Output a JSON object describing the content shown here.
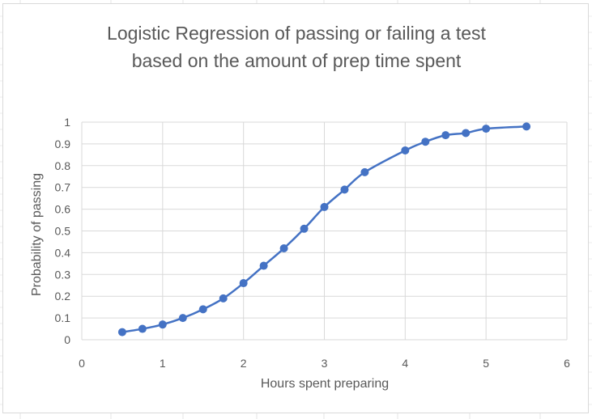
{
  "chart_data": {
    "type": "scatter",
    "title": [
      "Logistic Regression of passing or failing a test",
      "based on the amount of prep time spent"
    ],
    "xlabel": "Hours spent preparing",
    "ylabel": "Probability of passing",
    "xlim": [
      0,
      6
    ],
    "ylim": [
      0,
      1
    ],
    "xticks": [
      "0",
      "1",
      "2",
      "3",
      "4",
      "5",
      "6"
    ],
    "yticks": [
      "0",
      "0.1",
      "0.2",
      "0.3",
      "0.4",
      "0.5",
      "0.6",
      "0.7",
      "0.8",
      "0.9",
      "1"
    ],
    "grid": true,
    "legend": "none",
    "line_style": "smoothed",
    "series": [
      {
        "color": "#4472c4",
        "x": [
          0.5,
          0.75,
          1.0,
          1.25,
          1.5,
          1.75,
          2.0,
          2.25,
          2.5,
          2.75,
          3.0,
          3.25,
          3.5,
          4.0,
          4.25,
          4.5,
          4.75,
          5.0,
          5.5
        ],
        "y": [
          0.035,
          0.05,
          0.07,
          0.1,
          0.14,
          0.19,
          0.26,
          0.34,
          0.42,
          0.51,
          0.61,
          0.69,
          0.77,
          0.87,
          0.91,
          0.94,
          0.95,
          0.97,
          0.98
        ]
      }
    ]
  }
}
